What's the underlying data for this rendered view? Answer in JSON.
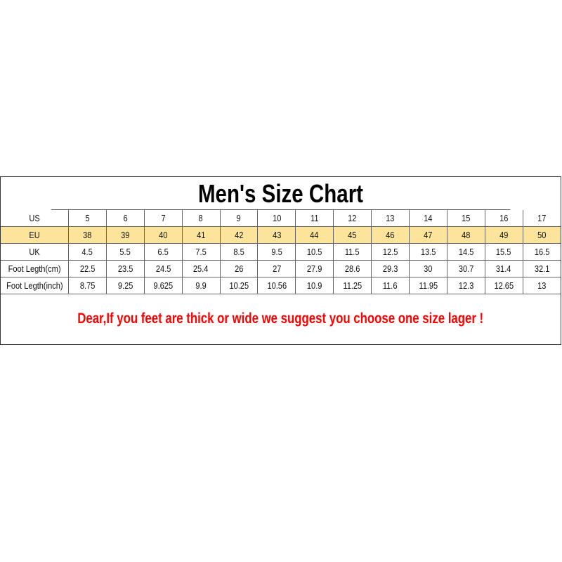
{
  "title": "Men's Size Chart",
  "rows": [
    {
      "label": "US",
      "values": [
        "5",
        "6",
        "7",
        "8",
        "9",
        "10",
        "11",
        "12",
        "13",
        "14",
        "15",
        "16",
        "17"
      ]
    },
    {
      "label": "EU",
      "values": [
        "38",
        "39",
        "40",
        "41",
        "42",
        "43",
        "44",
        "45",
        "46",
        "47",
        "48",
        "49",
        "50"
      ]
    },
    {
      "label": "UK",
      "values": [
        "4.5",
        "5.5",
        "6.5",
        "7.5",
        "8.5",
        "9.5",
        "10.5",
        "11.5",
        "12.5",
        "13.5",
        "14.5",
        "15.5",
        "16.5"
      ]
    },
    {
      "label": "Foot Legth(cm)",
      "values": [
        "22.5",
        "23.5",
        "24.5",
        "25.4",
        "26",
        "27",
        "27.9",
        "28.6",
        "29.3",
        "30",
        "30.7",
        "31.4",
        "32.1"
      ]
    },
    {
      "label": "Foot Legth(inch)",
      "values": [
        "8.75",
        "9.25",
        "9.625",
        "9.9",
        "10.25",
        "10.56",
        "10.9",
        "11.25",
        "11.6",
        "11.95",
        "12.3",
        "12.65",
        "13"
      ]
    }
  ],
  "message": "Dear,If you feet are thick or wide we suggest you choose one size lager !",
  "colors": {
    "highlight_row": "#fce59a",
    "message": "#ff0000"
  }
}
